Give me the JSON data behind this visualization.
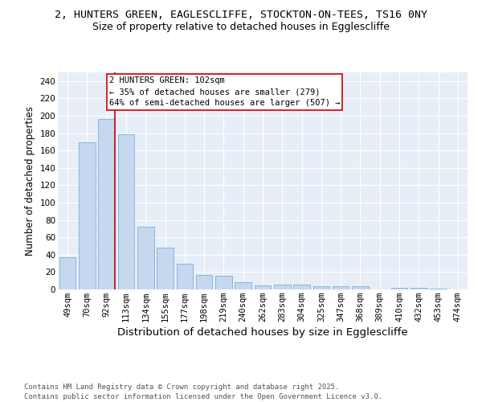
{
  "title1": "2, HUNTERS GREEN, EAGLESCLIFFE, STOCKTON-ON-TEES, TS16 0NY",
  "title2": "Size of property relative to detached houses in Egglescliffe",
  "xlabel": "Distribution of detached houses by size in Egglescliffe",
  "ylabel": "Number of detached properties",
  "categories": [
    "49sqm",
    "70sqm",
    "92sqm",
    "113sqm",
    "134sqm",
    "155sqm",
    "177sqm",
    "198sqm",
    "219sqm",
    "240sqm",
    "262sqm",
    "283sqm",
    "304sqm",
    "325sqm",
    "347sqm",
    "368sqm",
    "389sqm",
    "410sqm",
    "432sqm",
    "453sqm",
    "474sqm"
  ],
  "values": [
    37,
    169,
    196,
    179,
    72,
    48,
    30,
    17,
    16,
    8,
    5,
    6,
    6,
    4,
    4,
    4,
    0,
    2,
    2,
    1,
    0
  ],
  "bar_color": "#c5d8ef",
  "bar_edge_color": "#7bafd4",
  "background_color": "#e8eef8",
  "grid_color": "#ffffff",
  "annotation_box_color": "#ffffff",
  "annotation_box_edge": "#cc0000",
  "vline_color": "#cc0000",
  "vline_x_index": 2,
  "annotation_text": "2 HUNTERS GREEN: 102sqm\n← 35% of detached houses are smaller (279)\n64% of semi-detached houses are larger (507) →",
  "footer": "Contains HM Land Registry data © Crown copyright and database right 2025.\nContains public sector information licensed under the Open Government Licence v3.0.",
  "ylim": [
    0,
    250
  ],
  "yticks": [
    0,
    20,
    40,
    60,
    80,
    100,
    120,
    140,
    160,
    180,
    200,
    220,
    240
  ],
  "title1_fontsize": 9.5,
  "title2_fontsize": 9,
  "xlabel_fontsize": 9.5,
  "ylabel_fontsize": 8.5,
  "tick_fontsize": 7.5,
  "annotation_fontsize": 7.5,
  "footer_fontsize": 6.5
}
